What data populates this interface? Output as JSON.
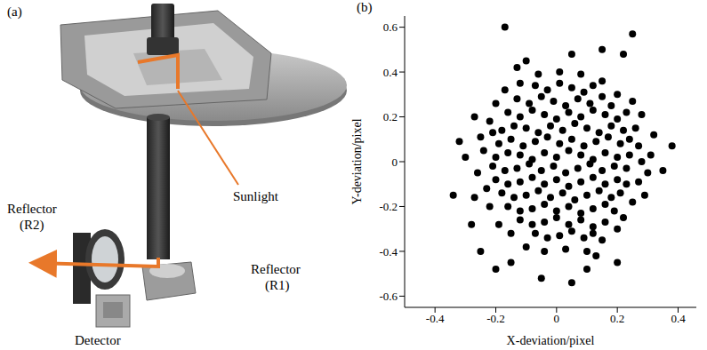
{
  "panel_a": {
    "letter": "(a)",
    "labels": {
      "sunlight": "Sunlight",
      "reflector_r2": "Reflector (R2)",
      "reflector_r1": "Reflector (R1)",
      "detector": "Detector"
    }
  },
  "chart_data": {
    "type": "scatter",
    "letter": "(b)",
    "x_label": "X-deviation/pixel",
    "y_label": "Y-deviation/pixel",
    "xlim": [
      -0.5,
      0.46
    ],
    "xticks": [
      -0.4,
      -0.2,
      0,
      0.2,
      0.4
    ],
    "ylim": [
      -0.65,
      0.65
    ],
    "yticks": [
      -0.6,
      -0.4,
      -0.2,
      0,
      0.2,
      0.4,
      0.6
    ],
    "color": "#000000",
    "marker": "circle",
    "grid": false,
    "points": [
      [
        -0.07,
        0.34
      ],
      [
        -0.03,
        0.32
      ],
      [
        0.01,
        0.35
      ],
      [
        0.05,
        0.33
      ],
      [
        0.09,
        0.31
      ],
      [
        0.12,
        0.34
      ],
      [
        -0.13,
        0.28
      ],
      [
        -0.09,
        0.26
      ],
      [
        -0.05,
        0.29
      ],
      [
        -0.01,
        0.27
      ],
      [
        0.03,
        0.25
      ],
      [
        0.07,
        0.28
      ],
      [
        0.11,
        0.26
      ],
      [
        0.15,
        0.29
      ],
      [
        0.18,
        0.25
      ],
      [
        -0.16,
        0.22
      ],
      [
        -0.12,
        0.2
      ],
      [
        -0.08,
        0.23
      ],
      [
        -0.04,
        0.21
      ],
      [
        0.0,
        0.19
      ],
      [
        0.04,
        0.22
      ],
      [
        0.08,
        0.2
      ],
      [
        0.12,
        0.23
      ],
      [
        0.16,
        0.21
      ],
      [
        0.2,
        0.19
      ],
      [
        -0.18,
        0.14
      ],
      [
        -0.14,
        0.16
      ],
      [
        -0.1,
        0.15
      ],
      [
        -0.06,
        0.13
      ],
      [
        -0.02,
        0.16
      ],
      [
        0.02,
        0.14
      ],
      [
        0.06,
        0.17
      ],
      [
        0.1,
        0.15
      ],
      [
        0.14,
        0.13
      ],
      [
        0.18,
        0.16
      ],
      [
        0.22,
        0.14
      ],
      [
        -0.19,
        0.08
      ],
      [
        -0.15,
        0.1
      ],
      [
        -0.11,
        0.07
      ],
      [
        -0.07,
        0.09
      ],
      [
        -0.03,
        0.11
      ],
      [
        0.01,
        0.08
      ],
      [
        0.05,
        0.1
      ],
      [
        0.09,
        0.07
      ],
      [
        0.13,
        0.09
      ],
      [
        0.17,
        0.11
      ],
      [
        0.21,
        0.08
      ],
      [
        0.24,
        0.1
      ],
      [
        -0.2,
        0.02
      ],
      [
        -0.16,
        0.04
      ],
      [
        -0.12,
        0.03
      ],
      [
        -0.08,
        0.01
      ],
      [
        -0.04,
        0.04
      ],
      [
        0.0,
        0.02
      ],
      [
        0.04,
        0.05
      ],
      [
        0.08,
        0.03
      ],
      [
        0.12,
        0.01
      ],
      [
        0.16,
        0.04
      ],
      [
        0.2,
        0.02
      ],
      [
        0.24,
        0.03
      ],
      [
        -0.21,
        -0.02
      ],
      [
        -0.17,
        -0.04
      ],
      [
        -0.13,
        -0.03
      ],
      [
        -0.09,
        -0.01
      ],
      [
        -0.05,
        -0.04
      ],
      [
        -0.01,
        -0.02
      ],
      [
        0.03,
        -0.05
      ],
      [
        0.07,
        -0.03
      ],
      [
        0.11,
        -0.01
      ],
      [
        0.15,
        -0.04
      ],
      [
        0.19,
        -0.02
      ],
      [
        0.23,
        -0.03
      ],
      [
        -0.2,
        -0.08
      ],
      [
        -0.16,
        -0.1
      ],
      [
        -0.12,
        -0.09
      ],
      [
        -0.08,
        -0.07
      ],
      [
        -0.04,
        -0.1
      ],
      [
        0.0,
        -0.08
      ],
      [
        0.04,
        -0.11
      ],
      [
        0.08,
        -0.09
      ],
      [
        0.12,
        -0.07
      ],
      [
        0.16,
        -0.1
      ],
      [
        0.2,
        -0.08
      ],
      [
        0.23,
        -0.1
      ],
      [
        -0.18,
        -0.14
      ],
      [
        -0.14,
        -0.16
      ],
      [
        -0.1,
        -0.15
      ],
      [
        -0.06,
        -0.13
      ],
      [
        -0.02,
        -0.16
      ],
      [
        0.02,
        -0.14
      ],
      [
        0.06,
        -0.17
      ],
      [
        0.1,
        -0.15
      ],
      [
        0.14,
        -0.13
      ],
      [
        0.18,
        -0.16
      ],
      [
        0.21,
        -0.14
      ],
      [
        -0.16,
        -0.2
      ],
      [
        -0.12,
        -0.22
      ],
      [
        -0.08,
        -0.21
      ],
      [
        -0.04,
        -0.19
      ],
      [
        0.0,
        -0.22
      ],
      [
        0.04,
        -0.2
      ],
      [
        0.08,
        -0.23
      ],
      [
        0.12,
        -0.21
      ],
      [
        0.16,
        -0.19
      ],
      [
        0.19,
        -0.22
      ],
      [
        -0.12,
        -0.26
      ],
      [
        -0.08,
        -0.28
      ],
      [
        -0.04,
        -0.27
      ],
      [
        0.0,
        -0.25
      ],
      [
        0.04,
        -0.28
      ],
      [
        0.08,
        -0.26
      ],
      [
        0.12,
        -0.29
      ],
      [
        0.16,
        -0.27
      ],
      [
        -0.07,
        -0.32
      ],
      [
        -0.03,
        -0.34
      ],
      [
        0.01,
        -0.33
      ],
      [
        0.05,
        -0.31
      ],
      [
        0.09,
        -0.34
      ],
      [
        0.12,
        -0.32
      ],
      [
        -0.2,
        0.26
      ],
      [
        -0.22,
        0.18
      ],
      [
        -0.25,
        0.11
      ],
      [
        -0.24,
        0.05
      ],
      [
        -0.26,
        -0.05
      ],
      [
        -0.23,
        -0.12
      ],
      [
        -0.22,
        -0.2
      ],
      [
        -0.19,
        -0.28
      ],
      [
        -0.15,
        -0.32
      ],
      [
        -0.1,
        -0.38
      ],
      [
        -0.04,
        -0.4
      ],
      [
        0.03,
        -0.39
      ],
      [
        0.1,
        -0.4
      ],
      [
        0.15,
        -0.35
      ],
      [
        0.2,
        -0.3
      ],
      [
        0.22,
        -0.25
      ],
      [
        0.25,
        -0.18
      ],
      [
        0.27,
        -0.09
      ],
      [
        0.28,
        0.0
      ],
      [
        0.27,
        0.07
      ],
      [
        0.26,
        0.15
      ],
      [
        0.23,
        0.22
      ],
      [
        0.2,
        0.3
      ],
      [
        0.15,
        0.36
      ],
      [
        0.08,
        0.39
      ],
      [
        0.01,
        0.4
      ],
      [
        -0.06,
        0.39
      ],
      [
        -0.12,
        0.35
      ],
      [
        -0.17,
        0.32
      ],
      [
        -0.21,
        0.13
      ],
      [
        0.3,
        -0.05
      ],
      [
        0.25,
        0.27
      ],
      [
        -0.27,
        -0.16
      ],
      [
        0.13,
        -0.42
      ],
      [
        -0.13,
        0.42
      ],
      [
        -0.17,
        0.6
      ],
      [
        0.25,
        0.57
      ],
      [
        0.38,
        0.07
      ],
      [
        -0.34,
        -0.15
      ],
      [
        0.35,
        -0.04
      ],
      [
        -0.27,
        0.2
      ],
      [
        -0.28,
        -0.28
      ],
      [
        0.05,
        -0.54
      ],
      [
        -0.05,
        -0.52
      ],
      [
        -0.2,
        -0.48
      ],
      [
        0.31,
        0.03
      ],
      [
        -0.3,
        0.02
      ],
      [
        0.22,
        0.48
      ],
      [
        -0.1,
        0.45
      ],
      [
        0.15,
        0.5
      ],
      [
        -0.25,
        -0.4
      ],
      [
        0.2,
        -0.45
      ],
      [
        0.29,
        -0.15
      ],
      [
        0.28,
        0.21
      ],
      [
        -0.32,
        0.09
      ],
      [
        0.1,
        -0.48
      ],
      [
        -0.15,
        -0.45
      ],
      [
        0.32,
        0.12
      ],
      [
        0.05,
        0.48
      ]
    ]
  }
}
